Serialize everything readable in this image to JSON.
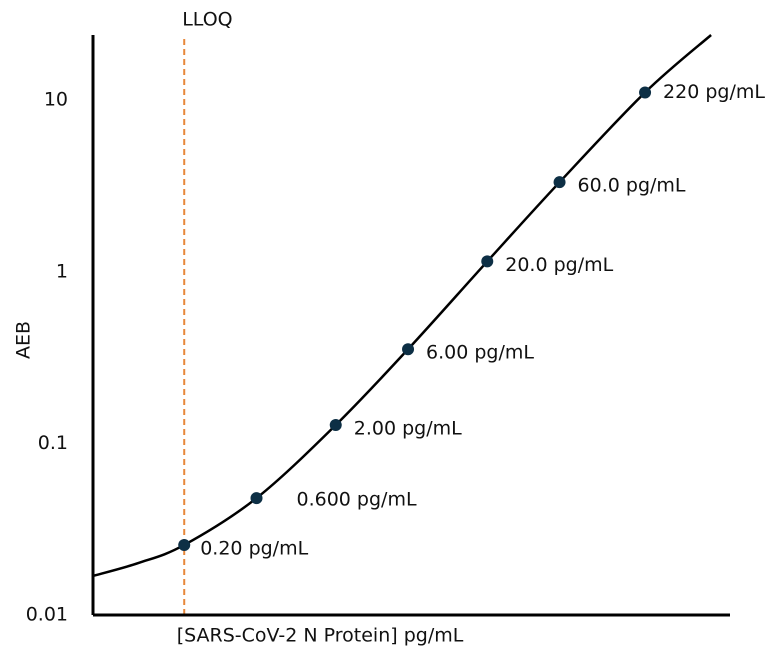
{
  "chart_data": {
    "type": "scatter",
    "x_label": "[SARS-CoV-2 N Protein] pg/mL",
    "y_label": "AEB",
    "xlog": true,
    "ylog": true,
    "xlim": [
      0.05,
      800
    ],
    "ylim": [
      0.01,
      24
    ],
    "yticks": [
      0.01,
      0.1,
      1,
      10
    ],
    "points": {
      "color": "#0d2f45",
      "x": [
        0.2,
        0.6,
        2,
        6,
        20,
        60,
        220
      ],
      "y": [
        0.0256,
        0.048,
        0.128,
        0.354,
        1.15,
        3.33,
        11.1
      ],
      "labels": [
        "0.20 pg/mL",
        "0.600 pg/mL",
        "2.00 pg/mL",
        "6.00 pg/mL",
        "20.0 pg/mL",
        "60.0 pg/mL",
        "220 pg/mL"
      ]
    },
    "curve": {
      "color": "#000000",
      "x": [
        0.05,
        0.1,
        0.2,
        0.6,
        2,
        6,
        20,
        60,
        220,
        600
      ],
      "y": [
        0.0169,
        0.0201,
        0.0256,
        0.048,
        0.128,
        0.354,
        1.15,
        3.33,
        11.1,
        24
      ]
    },
    "lloq": {
      "label": "LLOQ",
      "x": 0.2,
      "color": "#e8883a"
    }
  }
}
